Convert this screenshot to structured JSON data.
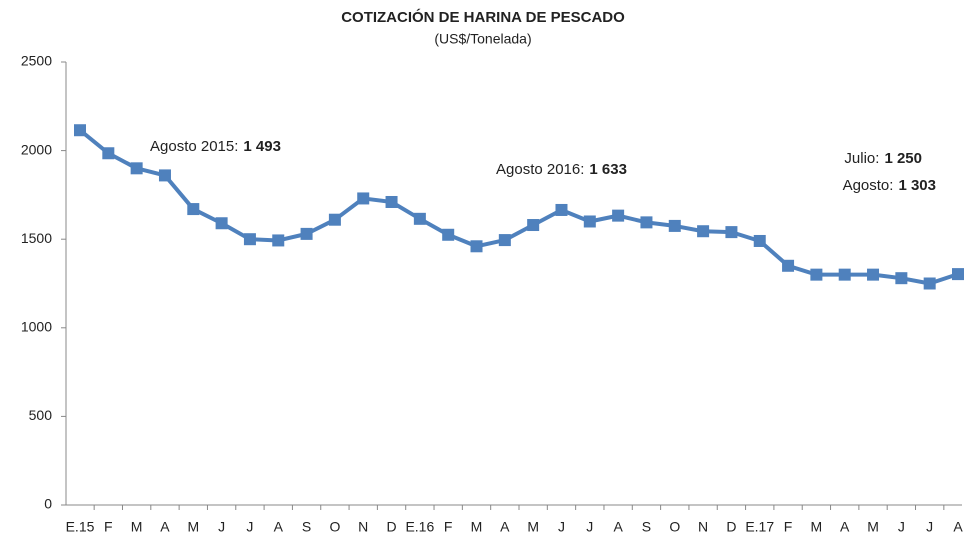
{
  "chart_data": {
    "type": "line",
    "title": "COTIZACIÓN DE HARINA DE PESCADO",
    "subtitle": "(US$/Tonelada)",
    "categories": [
      "E.15",
      "F",
      "M",
      "A",
      "M",
      "J",
      "J",
      "A",
      "S",
      "O",
      "N",
      "D",
      "E.16",
      "F",
      "M",
      "A",
      "M",
      "J",
      "J",
      "A",
      "S",
      "O",
      "N",
      "D",
      "E.17",
      "F",
      "M",
      "A",
      "M",
      "J",
      "J",
      "A"
    ],
    "series": [
      {
        "name": "Harina de pescado",
        "color": "#4f81bd",
        "values": [
          2115,
          1985,
          1900,
          1860,
          1670,
          1590,
          1500,
          1493,
          1530,
          1610,
          1730,
          1710,
          1615,
          1525,
          1460,
          1495,
          1580,
          1665,
          1600,
          1633,
          1595,
          1575,
          1545,
          1540,
          1490,
          1350,
          1300,
          1300,
          1300,
          1280,
          1250,
          1303
        ]
      }
    ],
    "ylim": [
      0,
      2500
    ],
    "yticks": [
      0,
      500,
      1000,
      1500,
      2000,
      2500
    ],
    "grid": false,
    "annotations": [
      {
        "label": "Agosto 2015:",
        "value": "1 493"
      },
      {
        "label": "Agosto 2016:",
        "value": "1 633"
      },
      {
        "label": "Julio:",
        "value": "1 250"
      },
      {
        "label": "Agosto:",
        "value": "1 303"
      }
    ]
  }
}
